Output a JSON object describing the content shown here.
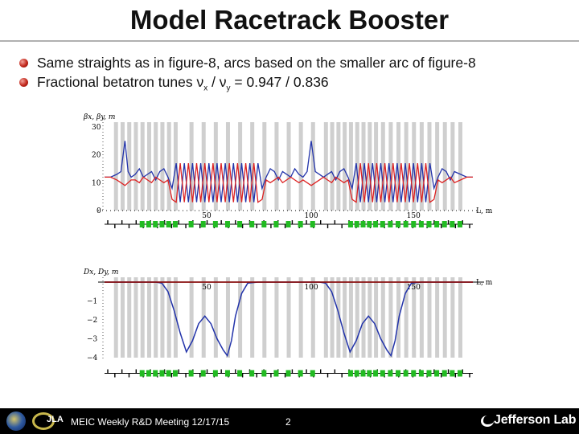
{
  "title": "Model Racetrack Booster",
  "bullets": [
    {
      "text": "Same straights as in figure-8, arcs based on the smaller arc of figure-8"
    },
    {
      "prefix": "Fractional betatron tunes ",
      "nu1": "ν",
      "sub1": "x",
      "mid": " / ",
      "nu2": "ν",
      "sub2": "y",
      "suffix": " = 0.947 / 0.836"
    }
  ],
  "footer": {
    "meeting": "MEIC Weekly R&D Meeting 12/17/15",
    "page": "2",
    "brand": "Jefferson Lab",
    "logo_text": "JLA",
    "logos": [
      "doe-seal-icon",
      "jlab-swoosh-icon"
    ]
  },
  "colors": {
    "beta_x": "#2233aa",
    "beta_y": "#dd2222",
    "dispersion_x": "#2233aa",
    "dispersion_y": "#8a1010",
    "elements": "#22bb22",
    "element_bands": "#cfcfcf"
  },
  "chart_data": [
    {
      "type": "line",
      "ylabel": "βx, βy, m",
      "xlabel": "L, m",
      "xlim": [
        0,
        180
      ],
      "ylim": [
        0,
        30
      ],
      "xticks": [
        "50",
        "100",
        "150"
      ],
      "yticks": [
        "10",
        "20",
        "30"
      ],
      "y_zero_label": "0",
      "series": [
        {
          "name": "βx",
          "x": [
            0,
            3,
            6,
            8,
            10,
            11.5,
            13,
            15,
            17,
            19,
            21,
            23,
            25,
            27,
            29,
            31,
            33,
            35,
            37,
            39,
            41,
            43,
            45,
            47,
            49,
            51,
            53,
            55,
            57,
            59,
            61,
            63,
            65,
            67,
            69,
            71,
            73,
            75,
            77,
            79,
            81,
            83,
            85,
            87,
            89,
            91,
            93,
            95,
            97,
            99,
            101,
            103,
            105,
            107,
            109,
            111,
            113,
            115,
            117,
            119,
            121,
            123,
            125,
            127,
            129,
            131,
            133,
            135,
            137,
            139,
            141,
            143,
            145,
            147,
            149,
            151,
            153,
            155,
            157,
            159,
            161,
            163,
            165,
            167,
            169,
            171,
            174,
            177,
            180
          ],
          "y": [
            12,
            12,
            13,
            14,
            25,
            14,
            12,
            13,
            15,
            12,
            13,
            14,
            11,
            14,
            15,
            12,
            8,
            17,
            3,
            17,
            3,
            17,
            3,
            17,
            3,
            17,
            3,
            17,
            3,
            17,
            3,
            17,
            3,
            17,
            3,
            17,
            3,
            17,
            8,
            12,
            15,
            14,
            11,
            14,
            13,
            12,
            15,
            13,
            12,
            14,
            25,
            14,
            13,
            12,
            13,
            14,
            11,
            14,
            15,
            12,
            8,
            17,
            3,
            17,
            3,
            17,
            3,
            17,
            3,
            17,
            3,
            17,
            3,
            17,
            3,
            17,
            3,
            17,
            3,
            17,
            8,
            12,
            15,
            14,
            11,
            14,
            13,
            12,
            12
          ]
        },
        {
          "name": "βy",
          "x": [
            0,
            3,
            6,
            8,
            10,
            11.5,
            13,
            15,
            17,
            19,
            21,
            23,
            25,
            27,
            29,
            31,
            33,
            35,
            37,
            39,
            41,
            43,
            45,
            47,
            49,
            51,
            53,
            55,
            57,
            59,
            61,
            63,
            65,
            67,
            69,
            71,
            73,
            75,
            77,
            79,
            81,
            83,
            85,
            87,
            89,
            91,
            93,
            95,
            97,
            99,
            101,
            103,
            105,
            107,
            109,
            111,
            113,
            115,
            117,
            119,
            121,
            123,
            125,
            127,
            129,
            131,
            133,
            135,
            137,
            139,
            141,
            143,
            145,
            147,
            149,
            151,
            153,
            155,
            157,
            159,
            161,
            163,
            165,
            167,
            169,
            171,
            174,
            177,
            180
          ],
          "y": [
            12,
            12,
            11,
            10,
            9,
            10,
            11,
            11,
            10,
            12,
            11,
            10,
            12,
            11,
            10,
            11,
            4,
            3,
            17,
            3,
            17,
            3,
            17,
            3,
            17,
            3,
            17,
            3,
            17,
            3,
            17,
            3,
            17,
            3,
            17,
            3,
            17,
            3,
            4,
            11,
            10,
            11,
            12,
            10,
            11,
            12,
            11,
            10,
            11,
            10,
            9,
            10,
            11,
            12,
            11,
            10,
            12,
            11,
            10,
            11,
            4,
            3,
            17,
            3,
            17,
            3,
            17,
            3,
            17,
            3,
            17,
            3,
            17,
            3,
            17,
            3,
            17,
            3,
            17,
            3,
            4,
            11,
            10,
            11,
            12,
            10,
            11,
            12,
            12
          ]
        }
      ]
    },
    {
      "type": "line",
      "ylabel": "Dx, Dy, m",
      "xlabel": "L, m",
      "xlim": [
        0,
        180
      ],
      "ylim": [
        -4,
        0
      ],
      "xticks": [
        "50",
        "100",
        "150"
      ],
      "yticks": [
        "−1",
        "−2",
        "−3",
        "−4"
      ],
      "series": [
        {
          "name": "Dx",
          "x": [
            0,
            25,
            28,
            31,
            34,
            37,
            40,
            43,
            46,
            49,
            52,
            55,
            58,
            60,
            62,
            64,
            67,
            70,
            75,
            105,
            108,
            111,
            114,
            117,
            120,
            123,
            126,
            129,
            132,
            135,
            138,
            140,
            142,
            144,
            147,
            150,
            155,
            180
          ],
          "y": [
            0,
            0,
            -0.05,
            -0.5,
            -1.5,
            -2.7,
            -3.7,
            -3.1,
            -2.2,
            -1.8,
            -2.2,
            -3.0,
            -3.6,
            -3.9,
            -3.1,
            -1.8,
            -0.6,
            -0.05,
            0,
            0,
            -0.05,
            -0.5,
            -1.5,
            -2.7,
            -3.7,
            -3.1,
            -2.2,
            -1.8,
            -2.2,
            -3.0,
            -3.6,
            -3.9,
            -3.1,
            -1.8,
            -0.6,
            -0.05,
            0,
            0
          ]
        },
        {
          "name": "Dy",
          "x": [
            0,
            180
          ],
          "y": [
            0,
            0
          ]
        }
      ]
    }
  ]
}
